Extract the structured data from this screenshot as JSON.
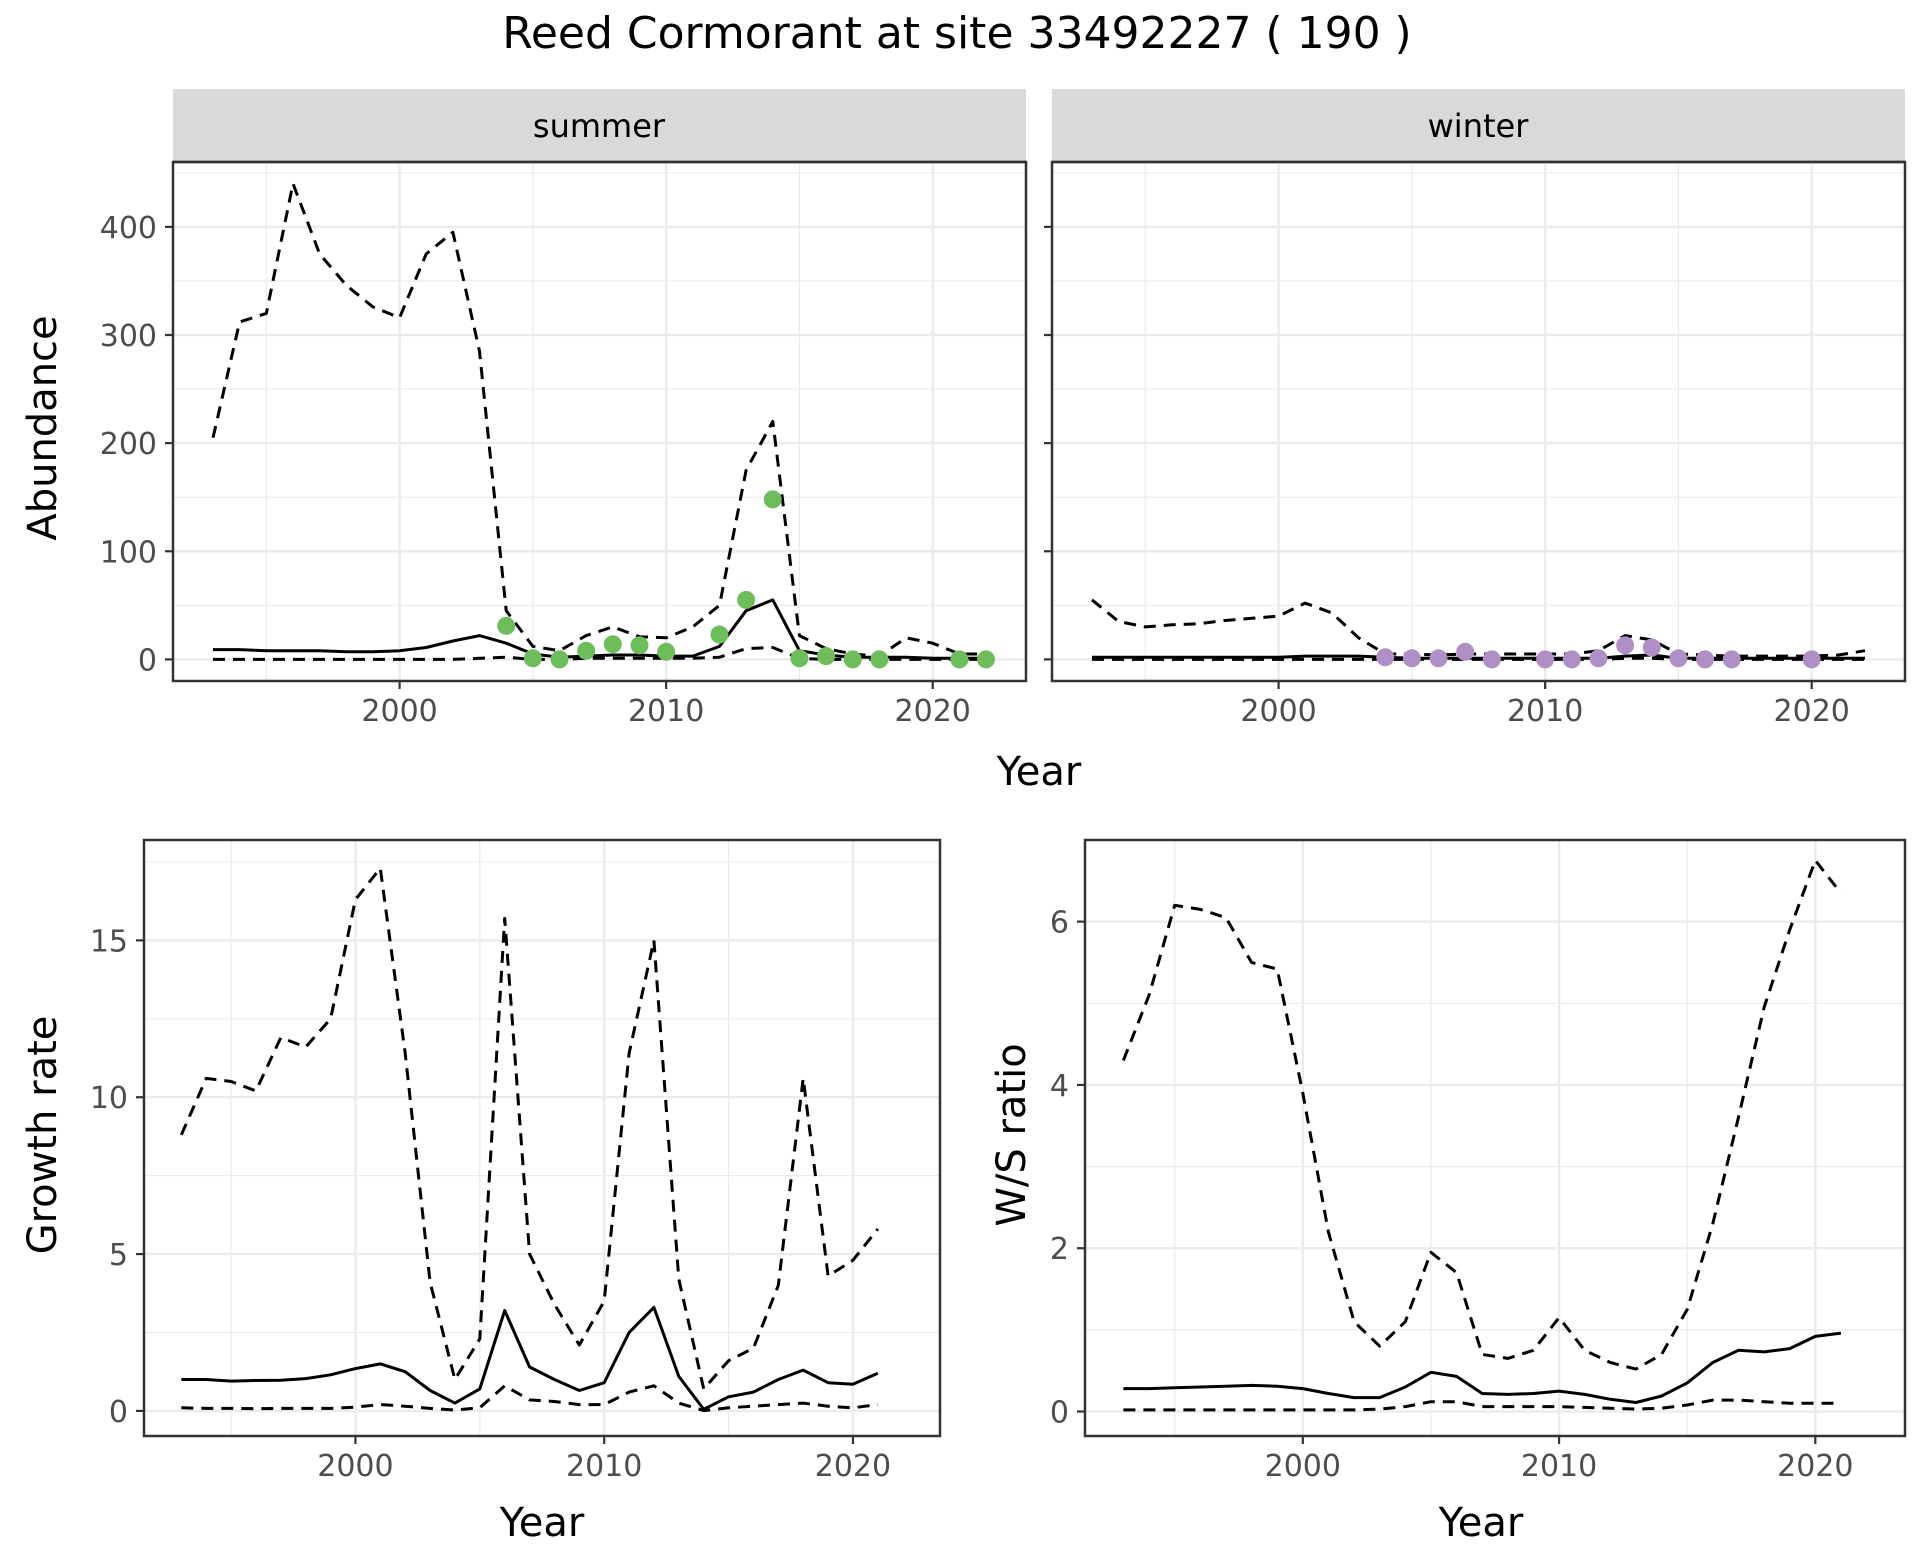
{
  "title": "Reed Cormorant at site 33492227 ( 190 )",
  "colors": {
    "summer_points": "#6dbd5b",
    "winter_points": "#b08fc7",
    "strip_bg": "#d9d9d9",
    "grid": "#ebebeb"
  },
  "chart_data": [
    {
      "type": "line",
      "facet": "summer",
      "strip_label": "summer",
      "xlabel": "Year",
      "ylabel": "Abundance",
      "xlim": [
        1991.5,
        2023.5
      ],
      "ylim": [
        -20,
        460
      ],
      "xticks": [
        2000,
        2010,
        2020
      ],
      "yticks": [
        0,
        100,
        200,
        300,
        400
      ],
      "series": [
        {
          "style": "solid",
          "x": [
            1993,
            1994,
            1995,
            1996,
            1997,
            1998,
            1999,
            2000,
            2001,
            2002,
            2003,
            2004,
            2005,
            2006,
            2007,
            2008,
            2009,
            2010,
            2011,
            2012,
            2013,
            2014,
            2015,
            2016,
            2017,
            2018,
            2019,
            2020,
            2021,
            2022
          ],
          "y": [
            9,
            9,
            8,
            8,
            8,
            7,
            7,
            8,
            11,
            17,
            22,
            15,
            5,
            2,
            3,
            4,
            4,
            3,
            3,
            12,
            45,
            55,
            8,
            4,
            2,
            2,
            2,
            1,
            1,
            1
          ]
        },
        {
          "style": "dashed",
          "x": [
            1993,
            1994,
            1995,
            1996,
            1997,
            1998,
            1999,
            2000,
            2001,
            2002,
            2003,
            2004,
            2005,
            2006,
            2007,
            2008,
            2009,
            2010,
            2011,
            2012,
            2013,
            2014,
            2015,
            2016,
            2017,
            2018,
            2019,
            2020,
            2021,
            2022
          ],
          "y": [
            205,
            312,
            320,
            440,
            375,
            346,
            326,
            316,
            375,
            395,
            285,
            45,
            12,
            8,
            22,
            30,
            21,
            20,
            30,
            50,
            175,
            220,
            22,
            10,
            5,
            3,
            20,
            15,
            5,
            5
          ]
        },
        {
          "style": "dashed",
          "x": [
            1993,
            1994,
            1995,
            1996,
            1997,
            1998,
            1999,
            2000,
            2001,
            2002,
            2003,
            2004,
            2005,
            2006,
            2007,
            2008,
            2009,
            2010,
            2011,
            2012,
            2013,
            2014,
            2015,
            2016,
            2017,
            2018,
            2019,
            2020,
            2021,
            2022
          ],
          "y": [
            0,
            0,
            0,
            0,
            0,
            0,
            0,
            0,
            0,
            0,
            1,
            2,
            0,
            0,
            1,
            1,
            1,
            1,
            1,
            2,
            10,
            11,
            1,
            0,
            0,
            0,
            0,
            0,
            0,
            0
          ]
        }
      ],
      "points": {
        "x": [
          2004,
          2005,
          2006,
          2007,
          2008,
          2009,
          2010,
          2012,
          2013,
          2014,
          2015,
          2016,
          2017,
          2018,
          2021,
          2022
        ],
        "y": [
          31,
          1,
          0,
          8,
          14,
          13,
          7,
          23,
          55,
          148,
          1,
          3,
          0,
          0,
          0,
          0
        ]
      }
    },
    {
      "type": "line",
      "facet": "winter",
      "strip_label": "winter",
      "xlabel": "Year",
      "ylabel": "",
      "xlim": [
        1991.5,
        2023.5
      ],
      "ylim": [
        -20,
        460
      ],
      "xticks": [
        2000,
        2010,
        2020
      ],
      "yticks": [
        0,
        100,
        200,
        300,
        400
      ],
      "series": [
        {
          "style": "solid",
          "x": [
            1993,
            1994,
            1995,
            1996,
            1997,
            1998,
            1999,
            2000,
            2001,
            2002,
            2003,
            2004,
            2005,
            2006,
            2007,
            2008,
            2009,
            2010,
            2011,
            2012,
            2013,
            2014,
            2015,
            2016,
            2017,
            2018,
            2019,
            2020,
            2021,
            2022
          ],
          "y": [
            2,
            2,
            2,
            2,
            2,
            2,
            2,
            2,
            3,
            3,
            3,
            2,
            1,
            1,
            1,
            1,
            1,
            1,
            1,
            1,
            3,
            4,
            1,
            1,
            1,
            1,
            1,
            1,
            1,
            1
          ]
        },
        {
          "style": "dashed",
          "x": [
            1993,
            1994,
            1995,
            1996,
            1997,
            1998,
            1999,
            2000,
            2001,
            2002,
            2003,
            2004,
            2005,
            2006,
            2007,
            2008,
            2009,
            2010,
            2011,
            2012,
            2013,
            2014,
            2015,
            2016,
            2017,
            2018,
            2019,
            2020,
            2021,
            2022
          ],
          "y": [
            55,
            35,
            30,
            32,
            33,
            36,
            38,
            40,
            52,
            43,
            20,
            5,
            5,
            4,
            5,
            5,
            5,
            5,
            5,
            8,
            22,
            18,
            5,
            4,
            3,
            3,
            3,
            3,
            4,
            8
          ]
        },
        {
          "style": "dashed",
          "x": [
            1993,
            1994,
            1995,
            1996,
            1997,
            1998,
            1999,
            2000,
            2001,
            2002,
            2003,
            2004,
            2005,
            2006,
            2007,
            2008,
            2009,
            2010,
            2011,
            2012,
            2013,
            2014,
            2015,
            2016,
            2017,
            2018,
            2019,
            2020,
            2021,
            2022
          ],
          "y": [
            0,
            0,
            0,
            0,
            0,
            0,
            0,
            0,
            0,
            0,
            0,
            0,
            0,
            0,
            0,
            0,
            0,
            0,
            0,
            0,
            1,
            1,
            0,
            0,
            0,
            0,
            0,
            0,
            0,
            0
          ]
        }
      ],
      "points": {
        "x": [
          2004,
          2005,
          2006,
          2007,
          2008,
          2010,
          2011,
          2012,
          2013,
          2014,
          2015,
          2016,
          2017,
          2020
        ],
        "y": [
          2,
          1,
          1,
          7,
          0,
          0,
          0,
          1,
          13,
          11,
          1,
          0,
          0,
          0
        ]
      }
    },
    {
      "type": "line",
      "xlabel": "Year",
      "ylabel": "Growth rate",
      "xlim": [
        1991.5,
        2023.5
      ],
      "ylim": [
        -0.8,
        18.2
      ],
      "xticks": [
        2000,
        2010,
        2020
      ],
      "yticks": [
        0,
        5,
        10,
        15
      ],
      "series": [
        {
          "style": "solid",
          "x": [
            1993,
            1994,
            1995,
            1996,
            1997,
            1998,
            1999,
            2000,
            2001,
            2002,
            2003,
            2004,
            2005,
            2006,
            2007,
            2008,
            2009,
            2010,
            2011,
            2012,
            2013,
            2014,
            2015,
            2016,
            2017,
            2018,
            2019,
            2020,
            2021
          ],
          "y": [
            1.0,
            1.0,
            0.95,
            0.97,
            0.98,
            1.03,
            1.15,
            1.35,
            1.5,
            1.25,
            0.65,
            0.25,
            0.7,
            3.2,
            1.4,
            1.0,
            0.65,
            0.9,
            2.5,
            3.3,
            1.1,
            0.05,
            0.45,
            0.6,
            1.0,
            1.3,
            0.9,
            0.85,
            1.2
          ]
        },
        {
          "style": "dashed",
          "x": [
            1993,
            1994,
            1995,
            1996,
            1997,
            1998,
            1999,
            2000,
            2001,
            2002,
            2003,
            2004,
            2005,
            2006,
            2007,
            2008,
            2009,
            2010,
            2011,
            2012,
            2013,
            2014,
            2015,
            2016,
            2017,
            2018,
            2019,
            2020,
            2021
          ],
          "y": [
            8.8,
            10.6,
            10.5,
            10.2,
            11.9,
            11.6,
            12.5,
            16.3,
            17.3,
            11.4,
            4.1,
            1.0,
            2.3,
            15.7,
            5.0,
            3.4,
            2.1,
            3.5,
            11.4,
            15.0,
            4.2,
            0.7,
            1.6,
            2.0,
            4.0,
            10.6,
            4.3,
            4.8,
            5.8
          ]
        },
        {
          "style": "dashed",
          "x": [
            1993,
            1994,
            1995,
            1996,
            1997,
            1998,
            1999,
            2000,
            2001,
            2002,
            2003,
            2004,
            2005,
            2006,
            2007,
            2008,
            2009,
            2010,
            2011,
            2012,
            2013,
            2014,
            2015,
            2016,
            2017,
            2018,
            2019,
            2020,
            2021
          ],
          "y": [
            0.1,
            0.08,
            0.08,
            0.07,
            0.08,
            0.08,
            0.08,
            0.12,
            0.2,
            0.15,
            0.08,
            0.03,
            0.1,
            0.8,
            0.35,
            0.3,
            0.2,
            0.2,
            0.6,
            0.8,
            0.25,
            0.01,
            0.1,
            0.15,
            0.2,
            0.25,
            0.15,
            0.1,
            0.2
          ]
        }
      ]
    },
    {
      "type": "line",
      "xlabel": "Year",
      "ylabel": "W/S ratio",
      "xlim": [
        1991.5,
        2023.5
      ],
      "ylim": [
        -0.3,
        7.0
      ],
      "xticks": [
        2000,
        2010,
        2020
      ],
      "yticks": [
        0,
        2,
        4,
        6
      ],
      "series": [
        {
          "style": "solid",
          "x": [
            1993,
            1994,
            1995,
            1996,
            1997,
            1998,
            1999,
            2000,
            2001,
            2002,
            2003,
            2004,
            2005,
            2006,
            2007,
            2008,
            2009,
            2010,
            2011,
            2012,
            2013,
            2014,
            2015,
            2016,
            2017,
            2018,
            2019,
            2020,
            2021
          ],
          "y": [
            0.28,
            0.28,
            0.29,
            0.3,
            0.31,
            0.32,
            0.31,
            0.28,
            0.22,
            0.17,
            0.17,
            0.3,
            0.48,
            0.43,
            0.22,
            0.21,
            0.22,
            0.25,
            0.21,
            0.15,
            0.11,
            0.19,
            0.35,
            0.6,
            0.75,
            0.73,
            0.77,
            0.92,
            0.96
          ]
        },
        {
          "style": "dashed",
          "x": [
            1993,
            1994,
            1995,
            1996,
            1997,
            1998,
            1999,
            2000,
            2001,
            2002,
            2003,
            2004,
            2005,
            2006,
            2007,
            2008,
            2009,
            2010,
            2011,
            2012,
            2013,
            2014,
            2015,
            2016,
            2017,
            2018,
            2019,
            2020,
            2021
          ],
          "y": [
            4.3,
            5.1,
            6.2,
            6.15,
            6.05,
            5.5,
            5.42,
            3.9,
            2.2,
            1.1,
            0.8,
            1.1,
            1.95,
            1.7,
            0.7,
            0.65,
            0.75,
            1.15,
            0.75,
            0.6,
            0.52,
            0.7,
            1.25,
            2.3,
            3.6,
            4.95,
            5.9,
            6.75,
            6.35
          ]
        },
        {
          "style": "dashed",
          "x": [
            1993,
            1994,
            1995,
            1996,
            1997,
            1998,
            1999,
            2000,
            2001,
            2002,
            2003,
            2004,
            2005,
            2006,
            2007,
            2008,
            2009,
            2010,
            2011,
            2012,
            2013,
            2014,
            2015,
            2016,
            2017,
            2018,
            2019,
            2020,
            2021
          ],
          "y": [
            0.02,
            0.02,
            0.02,
            0.02,
            0.02,
            0.02,
            0.02,
            0.02,
            0.02,
            0.02,
            0.03,
            0.06,
            0.12,
            0.12,
            0.06,
            0.06,
            0.06,
            0.06,
            0.05,
            0.04,
            0.03,
            0.04,
            0.08,
            0.14,
            0.14,
            0.12,
            0.1,
            0.1,
            0.1
          ]
        }
      ]
    }
  ]
}
